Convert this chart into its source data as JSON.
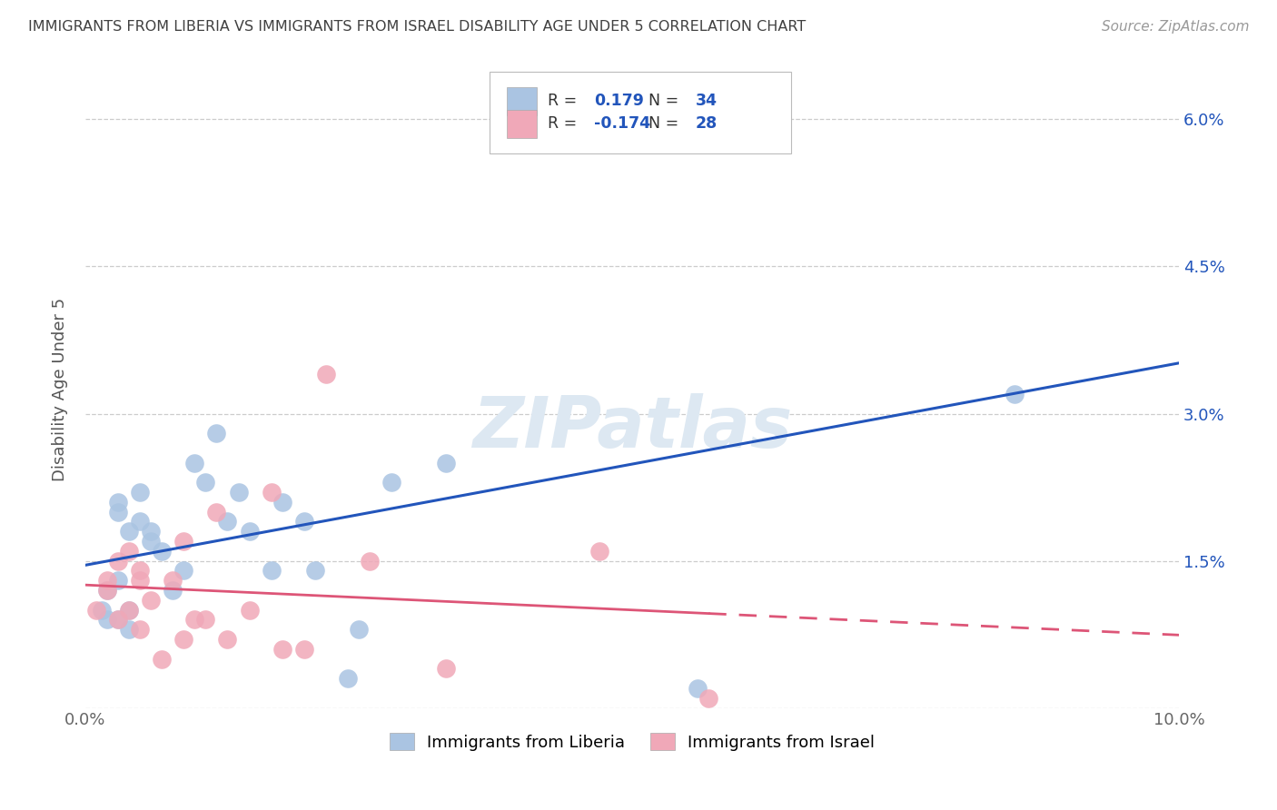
{
  "title": "IMMIGRANTS FROM LIBERIA VS IMMIGRANTS FROM ISRAEL DISABILITY AGE UNDER 5 CORRELATION CHART",
  "source": "Source: ZipAtlas.com",
  "ylabel": "Disability Age Under 5",
  "xlim": [
    0,
    0.1
  ],
  "ylim": [
    0,
    0.065
  ],
  "xticks": [
    0.0,
    0.02,
    0.04,
    0.06,
    0.08,
    0.1
  ],
  "xticklabels": [
    "0.0%",
    "",
    "",
    "",
    "",
    "10.0%"
  ],
  "yticks": [
    0.0,
    0.015,
    0.03,
    0.045,
    0.06
  ],
  "yticklabels": [
    "",
    "1.5%",
    "3.0%",
    "4.5%",
    "6.0%"
  ],
  "watermark_text": "ZIPatlas",
  "legend_liberia": "Immigrants from Liberia",
  "legend_israel": "Immigrants from Israel",
  "R_liberia": "0.179",
  "N_liberia": "34",
  "R_israel": "-0.174",
  "N_israel": "28",
  "color_liberia": "#aac4e2",
  "color_israel": "#f0a8b8",
  "line_color_liberia": "#2255bb",
  "line_color_israel": "#dd5577",
  "background_color": "#ffffff",
  "grid_color": "#cccccc",
  "title_color": "#404040",
  "liberia_x": [
    0.0015,
    0.002,
    0.002,
    0.003,
    0.003,
    0.003,
    0.003,
    0.004,
    0.004,
    0.004,
    0.005,
    0.005,
    0.006,
    0.006,
    0.007,
    0.008,
    0.009,
    0.01,
    0.011,
    0.012,
    0.013,
    0.014,
    0.015,
    0.017,
    0.018,
    0.02,
    0.021,
    0.024,
    0.025,
    0.028,
    0.033,
    0.047,
    0.056,
    0.085
  ],
  "liberia_y": [
    0.01,
    0.012,
    0.009,
    0.013,
    0.009,
    0.02,
    0.021,
    0.018,
    0.01,
    0.008,
    0.022,
    0.019,
    0.017,
    0.018,
    0.016,
    0.012,
    0.014,
    0.025,
    0.023,
    0.028,
    0.019,
    0.022,
    0.018,
    0.014,
    0.021,
    0.019,
    0.014,
    0.003,
    0.008,
    0.023,
    0.025,
    0.059,
    0.002,
    0.032
  ],
  "israel_x": [
    0.001,
    0.002,
    0.002,
    0.003,
    0.003,
    0.004,
    0.004,
    0.005,
    0.005,
    0.005,
    0.006,
    0.007,
    0.008,
    0.009,
    0.009,
    0.01,
    0.011,
    0.012,
    0.013,
    0.015,
    0.017,
    0.018,
    0.02,
    0.022,
    0.026,
    0.033,
    0.047,
    0.057
  ],
  "israel_y": [
    0.01,
    0.013,
    0.012,
    0.009,
    0.015,
    0.01,
    0.016,
    0.013,
    0.014,
    0.008,
    0.011,
    0.005,
    0.013,
    0.007,
    0.017,
    0.009,
    0.009,
    0.02,
    0.007,
    0.01,
    0.022,
    0.006,
    0.006,
    0.034,
    0.015,
    0.004,
    0.016,
    0.001
  ]
}
